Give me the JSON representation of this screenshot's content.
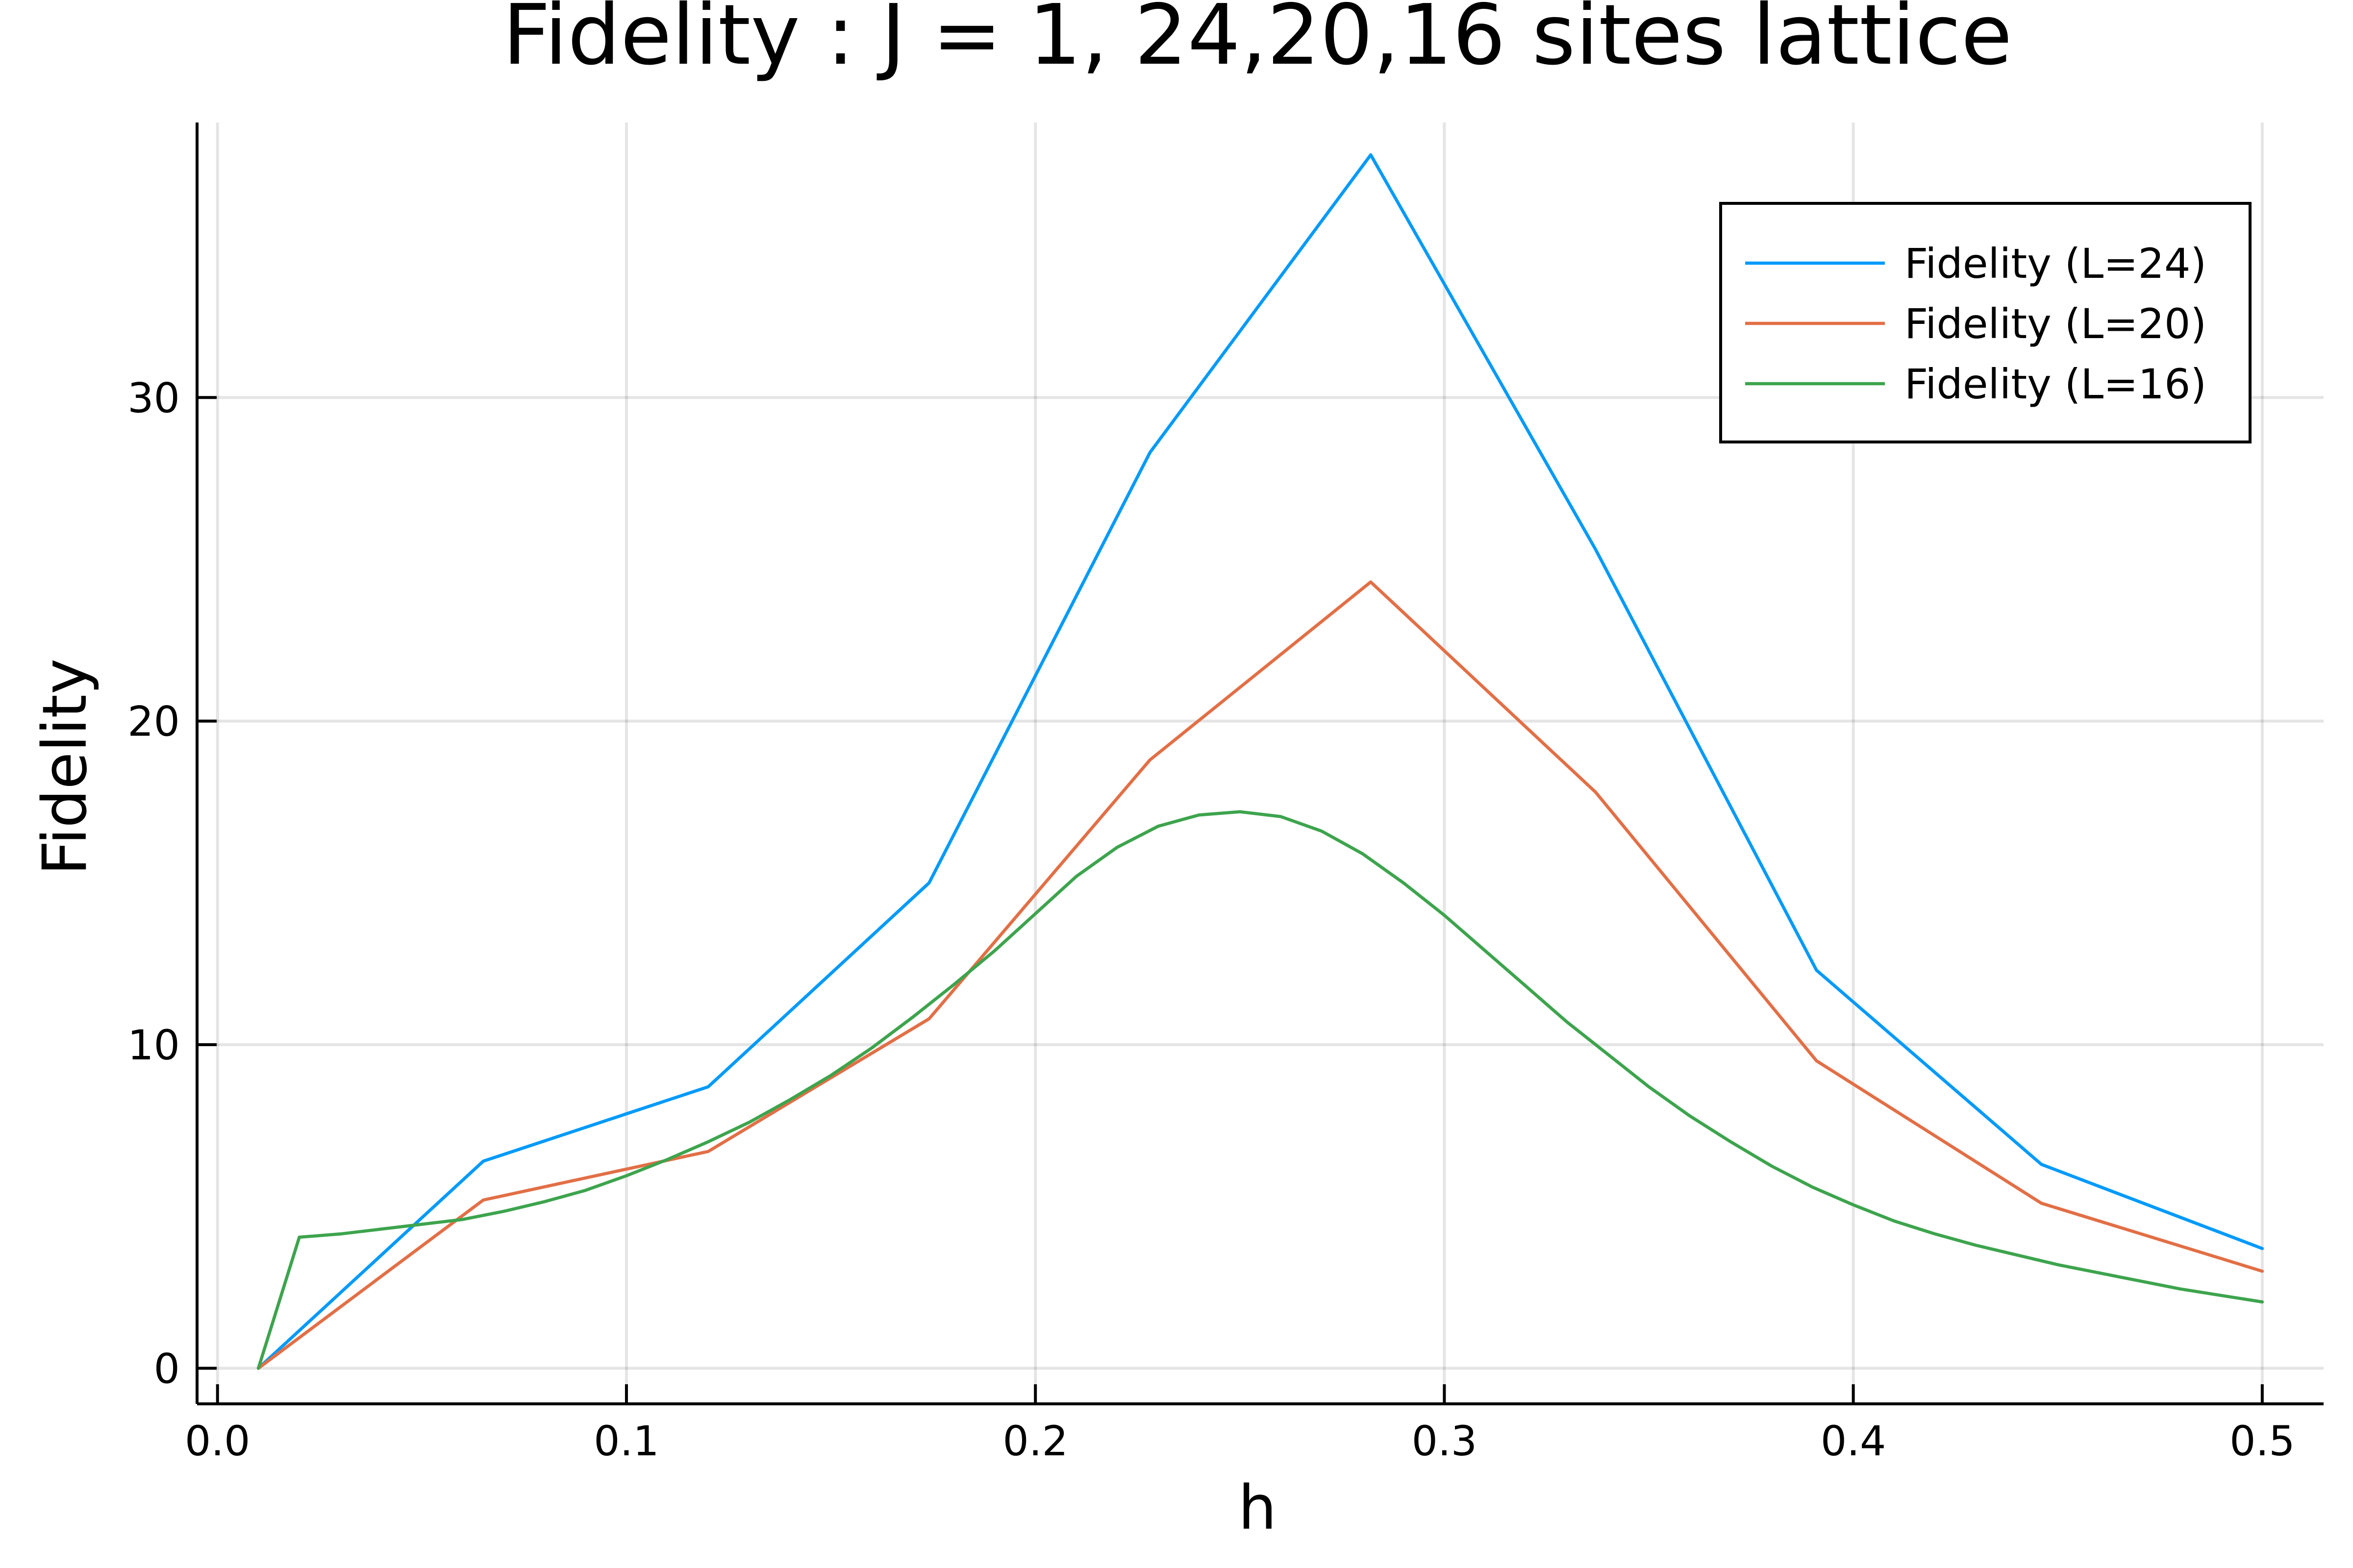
{
  "chart_data": {
    "type": "line",
    "title": "Fidelity : J = 1, 24,20,16 sites lattice",
    "xlabel": "h",
    "ylabel": "Fidelity",
    "xlim": [
      -0.005,
      0.515
    ],
    "ylim": [
      -1.1,
      38.5
    ],
    "xticks": [
      0.0,
      0.1,
      0.2,
      0.3,
      0.4,
      0.5
    ],
    "xtick_labels": [
      "0.0",
      "0.1",
      "0.2",
      "0.3",
      "0.4",
      "0.5"
    ],
    "yticks": [
      0,
      10,
      20,
      30
    ],
    "ytick_labels": [
      "0",
      "10",
      "20",
      "30"
    ],
    "grid": true,
    "legend_position": "top-right",
    "series": [
      {
        "name": "Fidelity (L=24)",
        "color": "#009AFA",
        "x": [
          0.01,
          0.065,
          0.12,
          0.174,
          0.228,
          0.282,
          0.337,
          0.391,
          0.446,
          0.5
        ],
        "y": [
          0.0,
          6.4,
          8.7,
          15.0,
          28.3,
          37.5,
          25.3,
          12.3,
          6.3,
          3.7
        ]
      },
      {
        "name": "Fidelity (L=20)",
        "color": "#E26F46",
        "x": [
          0.01,
          0.065,
          0.12,
          0.174,
          0.228,
          0.282,
          0.337,
          0.391,
          0.446,
          0.5
        ],
        "y": [
          0.0,
          5.2,
          6.7,
          10.8,
          18.8,
          24.3,
          17.8,
          9.5,
          5.1,
          3.0
        ]
      },
      {
        "name": "Fidelity (L=16)",
        "color": "#3DA44D",
        "x": [
          0.01,
          0.02,
          0.03,
          0.04,
          0.05,
          0.06,
          0.07,
          0.08,
          0.09,
          0.1,
          0.11,
          0.12,
          0.13,
          0.14,
          0.15,
          0.16,
          0.17,
          0.18,
          0.19,
          0.2,
          0.21,
          0.22,
          0.23,
          0.24,
          0.25,
          0.26,
          0.27,
          0.28,
          0.29,
          0.3,
          0.31,
          0.32,
          0.33,
          0.34,
          0.35,
          0.36,
          0.37,
          0.38,
          0.39,
          0.4,
          0.41,
          0.42,
          0.43,
          0.44,
          0.45,
          0.46,
          0.47,
          0.48,
          0.49,
          0.5
        ],
        "y": [
          0.0,
          4.05,
          4.15,
          4.3,
          4.45,
          4.6,
          4.85,
          5.15,
          5.5,
          5.95,
          6.45,
          7.0,
          7.6,
          8.3,
          9.05,
          9.9,
          10.85,
          11.85,
          12.9,
          14.05,
          15.2,
          16.1,
          16.75,
          17.1,
          17.2,
          17.05,
          16.6,
          15.9,
          15.0,
          14.0,
          12.9,
          11.8,
          10.7,
          9.7,
          8.7,
          7.8,
          7.0,
          6.25,
          5.6,
          5.05,
          4.55,
          4.15,
          3.8,
          3.5,
          3.2,
          2.95,
          2.7,
          2.45,
          2.25,
          2.05
        ]
      }
    ]
  }
}
